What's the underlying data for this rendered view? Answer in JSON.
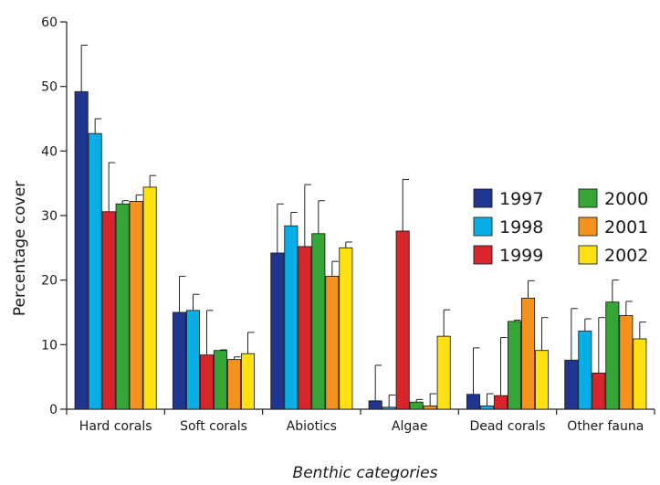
{
  "chart_data": {
    "type": "bar",
    "title": "",
    "xlabel": "Benthic categories",
    "ylabel": "Percentage cover",
    "ylim": [
      0,
      60
    ],
    "yticks": [
      0,
      10,
      20,
      30,
      40,
      50,
      60
    ],
    "grid": false,
    "legend_position": "right",
    "categories": [
      "Hard corals",
      "Soft corals",
      "Abiotics",
      "Algae",
      "Dead corals",
      "Other fauna"
    ],
    "series": [
      {
        "name": "1997",
        "color": "#1f3590",
        "values": [
          49.2,
          15.0,
          24.2,
          1.3,
          2.3,
          7.6
        ],
        "errors": [
          7.2,
          5.6,
          7.6,
          5.5,
          7.2,
          8.0
        ]
      },
      {
        "name": "1998",
        "color": "#0aaee6",
        "values": [
          42.7,
          15.3,
          28.4,
          0.3,
          0.5,
          12.1
        ],
        "errors": [
          2.3,
          2.5,
          2.1,
          1.9,
          1.9,
          1.9
        ]
      },
      {
        "name": "1999",
        "color": "#d8242b",
        "values": [
          30.6,
          8.4,
          25.2,
          27.6,
          2.1,
          5.6
        ],
        "errors": [
          7.6,
          6.9,
          9.6,
          8.0,
          9.0,
          8.6
        ]
      },
      {
        "name": "2000",
        "color": "#36a537",
        "values": [
          31.8,
          9.1,
          27.2,
          1.1,
          13.6,
          16.6
        ],
        "errors": [
          0.5,
          0.1,
          5.1,
          0.4,
          0.2,
          3.4
        ]
      },
      {
        "name": "2001",
        "color": "#f5921e",
        "values": [
          32.2,
          7.7,
          20.6,
          0.5,
          17.2,
          14.5
        ],
        "errors": [
          1.0,
          0.4,
          2.3,
          1.9,
          2.7,
          2.2
        ]
      },
      {
        "name": "2002",
        "color": "#ffe011",
        "values": [
          34.4,
          8.6,
          25.0,
          11.3,
          9.1,
          10.9
        ],
        "errors": [
          1.8,
          3.3,
          0.9,
          4.1,
          5.1,
          2.6
        ]
      }
    ]
  }
}
